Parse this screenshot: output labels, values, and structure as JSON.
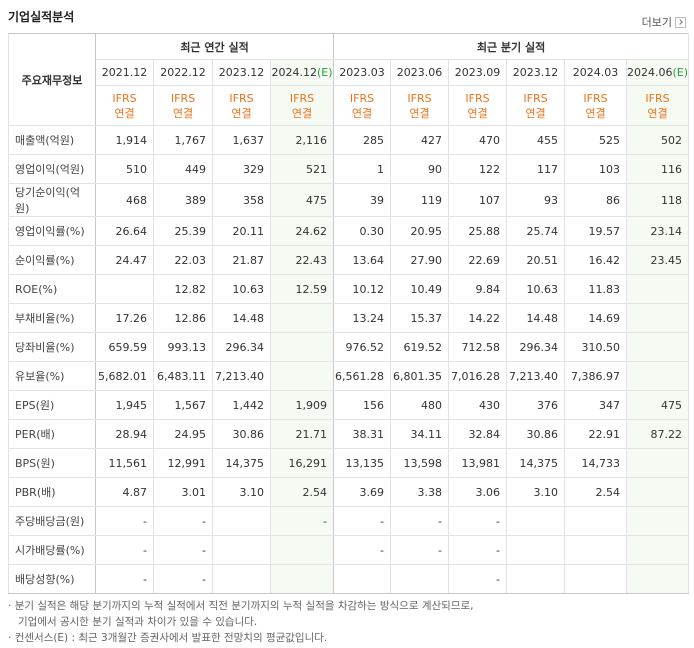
{
  "header": {
    "title": "기업실적분석",
    "more": "더보기"
  },
  "table": {
    "corner": "주요재무정보",
    "groups": [
      "최근 연간 실적",
      "최근 분기 실적"
    ],
    "columns": [
      {
        "period": "2021.12",
        "basis": "IFRS",
        "scope": "연결"
      },
      {
        "period": "2022.12",
        "basis": "IFRS",
        "scope": "연결"
      },
      {
        "period": "2023.12",
        "basis": "IFRS",
        "scope": "연결"
      },
      {
        "period": "2024.12",
        "estimate": "(E)",
        "basis": "IFRS",
        "scope": "연결"
      },
      {
        "period": "2023.03",
        "basis": "IFRS",
        "scope": "연결"
      },
      {
        "period": "2023.06",
        "basis": "IFRS",
        "scope": "연결"
      },
      {
        "period": "2023.09",
        "basis": "IFRS",
        "scope": "연결"
      },
      {
        "period": "2023.12",
        "basis": "IFRS",
        "scope": "연결"
      },
      {
        "period": "2024.03",
        "basis": "IFRS",
        "scope": "연결"
      },
      {
        "period": "2024.06",
        "estimate": "(E)",
        "basis": "IFRS",
        "scope": "연결"
      }
    ],
    "rows": [
      {
        "label": "매출액(억원)",
        "values": [
          "1,914",
          "1,767",
          "1,637",
          "2,116",
          "285",
          "427",
          "470",
          "455",
          "525",
          "502"
        ]
      },
      {
        "label": "영업이익(억원)",
        "values": [
          "510",
          "449",
          "329",
          "521",
          "1",
          "90",
          "122",
          "117",
          "103",
          "116"
        ]
      },
      {
        "label": "당기순이익(억원)",
        "values": [
          "468",
          "389",
          "358",
          "475",
          "39",
          "119",
          "107",
          "93",
          "86",
          "118"
        ]
      },
      {
        "label": "영업이익률(%)",
        "values": [
          "26.64",
          "25.39",
          "20.11",
          "24.62",
          "0.30",
          "20.95",
          "25.88",
          "25.74",
          "19.57",
          "23.14"
        ]
      },
      {
        "label": "순이익률(%)",
        "values": [
          "24.47",
          "22.03",
          "21.87",
          "22.43",
          "13.64",
          "27.90",
          "22.69",
          "20.51",
          "16.42",
          "23.45"
        ]
      },
      {
        "label": "ROE(%)",
        "values": [
          null,
          "12.82",
          "10.63",
          "12.59",
          "10.12",
          "10.49",
          "9.84",
          "10.63",
          "11.83",
          null
        ]
      },
      {
        "label": "부채비율(%)",
        "values": [
          "17.26",
          "12.86",
          "14.48",
          null,
          "13.24",
          "15.37",
          "14.22",
          "14.48",
          "14.69",
          null
        ]
      },
      {
        "label": "당좌비율(%)",
        "values": [
          "659.59",
          "993.13",
          "296.34",
          null,
          "976.52",
          "619.52",
          "712.58",
          "296.34",
          "310.50",
          null
        ]
      },
      {
        "label": "유보율(%)",
        "values": [
          "5,682.01",
          "6,483.11",
          "7,213.40",
          null,
          "6,561.28",
          "6,801.35",
          "7,016.28",
          "7,213.40",
          "7,386.97",
          null
        ]
      },
      {
        "label": "EPS(원)",
        "values": [
          "1,945",
          "1,567",
          "1,442",
          "1,909",
          "156",
          "480",
          "430",
          "376",
          "347",
          "475"
        ]
      },
      {
        "label": "PER(배)",
        "values": [
          "28.94",
          "24.95",
          "30.86",
          "21.71",
          "38.31",
          "34.11",
          "32.84",
          "30.86",
          "22.91",
          "87.22"
        ]
      },
      {
        "label": "BPS(원)",
        "values": [
          "11,561",
          "12,991",
          "14,375",
          "16,291",
          "13,135",
          "13,598",
          "13,981",
          "14,375",
          "14,733",
          null
        ]
      },
      {
        "label": "PBR(배)",
        "values": [
          "4.87",
          "3.01",
          "3.10",
          "2.54",
          "3.69",
          "3.38",
          "3.06",
          "3.10",
          "2.54",
          null
        ]
      },
      {
        "label": "주당배당금(원)",
        "values": [
          "-",
          "-",
          null,
          "-",
          "-",
          "-",
          "-",
          null,
          null,
          null
        ]
      },
      {
        "label": "시가배당률(%)",
        "values": [
          "-",
          "-",
          null,
          null,
          "-",
          "-",
          "-",
          null,
          null,
          null
        ]
      },
      {
        "label": "배당성향(%)",
        "values": [
          "-",
          "-",
          null,
          null,
          null,
          null,
          "-",
          null,
          null,
          null
        ]
      }
    ]
  },
  "notes": [
    "분기 실적은 해당 분기까지의 누적 실적에서 직전 분기까지의 누적 실적을 차감하는 방식으로 계산되므로,",
    "기업에서 공시한 분기 실적과 차이가 있을 수 있습니다.",
    "컨센서스(E) : 최근 3개월간 증권사에서 발표한 전망치의 평균값입니다."
  ]
}
